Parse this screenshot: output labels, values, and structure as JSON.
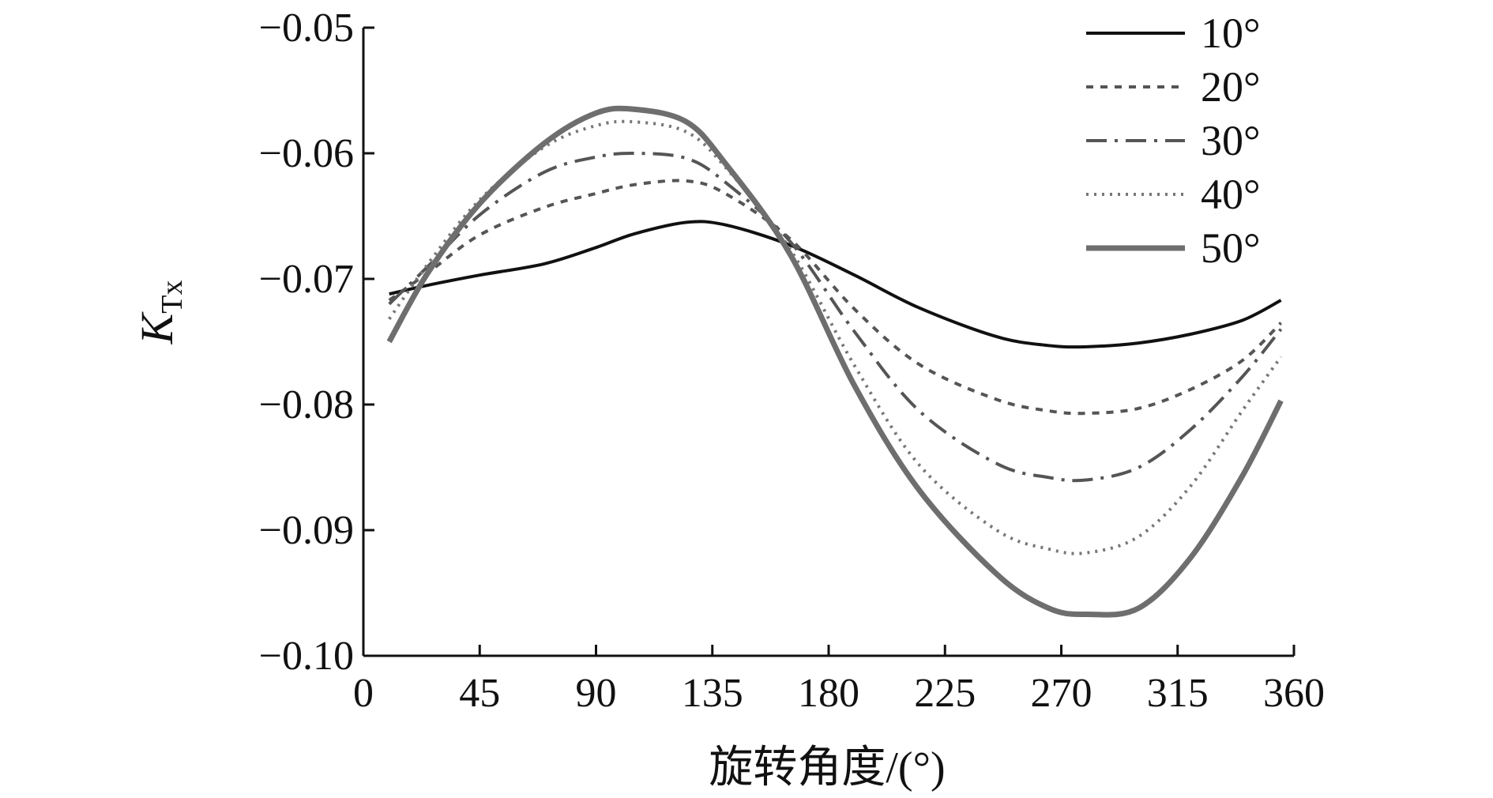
{
  "chart_data": {
    "type": "line",
    "title": "",
    "xlabel": "旋转角度/(°)",
    "ylabel": "K",
    "ylabel_subscript": "Tx",
    "xlim": [
      0,
      360
    ],
    "ylim": [
      -0.1,
      -0.05
    ],
    "xticks": [
      0,
      45,
      90,
      135,
      180,
      225,
      270,
      315,
      360
    ],
    "xtick_labels": [
      "0",
      "45",
      "90",
      "135",
      "180",
      "225",
      "270",
      "315",
      "360"
    ],
    "yticks": [
      -0.05,
      -0.06,
      -0.07,
      -0.08,
      -0.09,
      -0.1
    ],
    "ytick_labels": [
      "−0.05",
      "−0.06",
      "−0.07",
      "−0.08",
      "−0.09",
      "−0.10"
    ],
    "grid": false,
    "legend_position": "top-right",
    "x": [
      10,
      25,
      45,
      70,
      90,
      105,
      125,
      140,
      165,
      190,
      215,
      245,
      265,
      280,
      300,
      320,
      340,
      355
    ],
    "series": [
      {
        "name": "10°",
        "color": "#111111",
        "dash": "solid",
        "width": 4,
        "values": [
          -0.0712,
          -0.0705,
          -0.0697,
          -0.0688,
          -0.0675,
          -0.0664,
          -0.0655,
          -0.0657,
          -0.0673,
          -0.0697,
          -0.0723,
          -0.0746,
          -0.0753,
          -0.0754,
          -0.0751,
          -0.0744,
          -0.0733,
          -0.0717
        ]
      },
      {
        "name": "20°",
        "color": "#555555",
        "dash": "dashed",
        "width": 4,
        "values": [
          -0.0717,
          -0.0695,
          -0.0665,
          -0.0643,
          -0.0632,
          -0.0625,
          -0.0622,
          -0.0632,
          -0.0668,
          -0.0724,
          -0.0768,
          -0.0796,
          -0.0805,
          -0.0807,
          -0.0803,
          -0.0788,
          -0.0765,
          -0.0735
        ]
      },
      {
        "name": "30°",
        "color": "#555555",
        "dash": "dashdot",
        "width": 4,
        "values": [
          -0.072,
          -0.069,
          -0.0649,
          -0.0615,
          -0.0603,
          -0.06,
          -0.0604,
          -0.0623,
          -0.067,
          -0.0742,
          -0.0805,
          -0.0847,
          -0.0858,
          -0.086,
          -0.085,
          -0.082,
          -0.0778,
          -0.074
        ]
      },
      {
        "name": "40°",
        "color": "#777777",
        "dash": "dotted",
        "width": 4,
        "values": [
          -0.0732,
          -0.0688,
          -0.0637,
          -0.0595,
          -0.0578,
          -0.0575,
          -0.0583,
          -0.0611,
          -0.0676,
          -0.0769,
          -0.0848,
          -0.09,
          -0.0915,
          -0.0918,
          -0.0905,
          -0.0865,
          -0.0805,
          -0.0762
        ]
      },
      {
        "name": "50°",
        "color": "#6e6e6e",
        "dash": "solid",
        "width": 7,
        "values": [
          -0.075,
          -0.0695,
          -0.064,
          -0.0592,
          -0.0568,
          -0.0565,
          -0.0575,
          -0.0608,
          -0.068,
          -0.0785,
          -0.0868,
          -0.0935,
          -0.0962,
          -0.0967,
          -0.0962,
          -0.0922,
          -0.0857,
          -0.0797
        ]
      }
    ]
  }
}
